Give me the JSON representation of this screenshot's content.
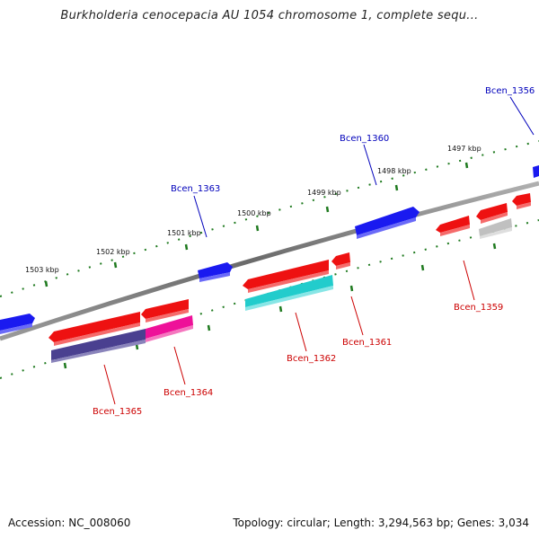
{
  "title": "Burkholderia cenocepacia AU 1054 chromosome 1, complete sequ...",
  "footer": {
    "accession": "Accession: NC_008060",
    "summary": "Topology: circular; Length: 3,294,563 bp; Genes: 3,034"
  },
  "colors": {
    "backbone": "#808080",
    "scale_ticks": "#1f7a1f",
    "forward_label": "#0000bb",
    "reverse_label": "#cc0000",
    "gene_blue": "#1a1af0",
    "gene_red": "#ee1111",
    "gene_cyan": "#22cccc",
    "gene_magenta": "#ee1199",
    "gene_navy": "#4a4090",
    "gene_gray": "#c0c0c0"
  },
  "scale_labels": [
    "1503 kbp",
    "1502 kbp",
    "1501 kbp",
    "1500 kbp",
    "1499 kbp",
    "1498 kbp",
    "1497 kbp"
  ],
  "forward_genes": [
    {
      "name": "Bcen_1363"
    },
    {
      "name": "Bcen_1360"
    },
    {
      "name": "Bcen_1356"
    }
  ],
  "reverse_genes": [
    {
      "name": "Bcen_1365"
    },
    {
      "name": "Bcen_1364"
    },
    {
      "name": "Bcen_1362"
    },
    {
      "name": "Bcen_1361"
    },
    {
      "name": "Bcen_1359"
    }
  ]
}
